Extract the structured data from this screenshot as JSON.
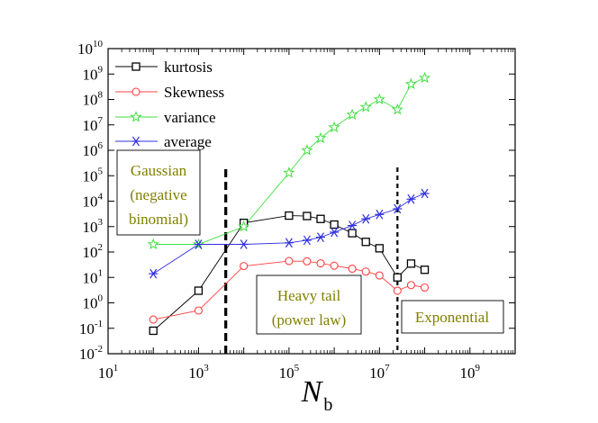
{
  "chart_data": {
    "type": "line",
    "xlabel": "N",
    "xlabel_sub": "b",
    "ylabel": "",
    "x_scale": "log",
    "y_scale": "log",
    "xlim": [
      10,
      10000000000.0
    ],
    "ylim": [
      0.01,
      10000000000.0
    ],
    "x_ticks": [
      {
        "value": 10,
        "base": "10",
        "exp": "1"
      },
      {
        "value": 1000,
        "base": "10",
        "exp": "3"
      },
      {
        "value": 100000,
        "base": "10",
        "exp": "5"
      },
      {
        "value": 10000000,
        "base": "10",
        "exp": "7"
      },
      {
        "value": 1000000000,
        "base": "10",
        "exp": "9"
      }
    ],
    "y_ticks": [
      {
        "value": 0.01,
        "base": "10",
        "exp": "-2"
      },
      {
        "value": 0.1,
        "base": "10",
        "exp": "-1"
      },
      {
        "value": 1,
        "base": "10",
        "exp": "0"
      },
      {
        "value": 10,
        "base": "10",
        "exp": "1"
      },
      {
        "value": 100,
        "base": "10",
        "exp": "2"
      },
      {
        "value": 1000,
        "base": "10",
        "exp": "3"
      },
      {
        "value": 10000,
        "base": "10",
        "exp": "4"
      },
      {
        "value": 100000,
        "base": "10",
        "exp": "5"
      },
      {
        "value": 1000000,
        "base": "10",
        "exp": "6"
      },
      {
        "value": 10000000,
        "base": "10",
        "exp": "7"
      },
      {
        "value": 100000000,
        "base": "10",
        "exp": "8"
      },
      {
        "value": 1000000000,
        "base": "10",
        "exp": "9"
      },
      {
        "value": 10000000000,
        "base": "10",
        "exp": "10"
      }
    ],
    "legend_position": "top-left",
    "grid": false,
    "series": [
      {
        "name": "kurtosis",
        "color": "#000000",
        "marker": "square",
        "x": [
          100,
          1000,
          10000,
          100000,
          250000,
          500000,
          1000000,
          2500000,
          5000000,
          10000000,
          25000000,
          50000000,
          100000000
        ],
        "y": [
          0.08,
          3,
          1400,
          2700,
          2600,
          2000,
          1200,
          550,
          250,
          140,
          10,
          35,
          20
        ]
      },
      {
        "name": "Skewness",
        "color": "#ff4040",
        "marker": "circle",
        "x": [
          100,
          1000,
          10000,
          100000,
          250000,
          500000,
          1000000,
          2500000,
          5000000,
          10000000,
          25000000,
          50000000,
          100000000
        ],
        "y": [
          0.22,
          0.5,
          28,
          44,
          43,
          36,
          29,
          22,
          17,
          12,
          3,
          5,
          4
        ]
      },
      {
        "name": "variance",
        "color": "#40e040",
        "marker": "star",
        "x": [
          100,
          1000,
          10000,
          100000,
          250000,
          500000,
          1000000,
          2500000,
          5000000,
          10000000,
          25000000,
          50000000,
          100000000
        ],
        "y": [
          200,
          200,
          1000,
          130000,
          1000000,
          3000000,
          8000000,
          25000000,
          50000000,
          100000000,
          40000000,
          400000000,
          700000000
        ]
      },
      {
        "name": "average",
        "color": "#3030e0",
        "marker": "asterisk",
        "x": [
          100,
          1000,
          10000,
          100000,
          250000,
          500000,
          1000000,
          2500000,
          5000000,
          10000000,
          25000000,
          50000000,
          100000000
        ],
        "y": [
          14,
          200,
          200,
          230,
          290,
          380,
          600,
          1100,
          2000,
          3000,
          5000,
          12000,
          20000
        ]
      }
    ],
    "vlines": [
      {
        "x": 4000,
        "style": "thick-dashed",
        "color": "#000000"
      },
      {
        "x": 25000000,
        "style": "dashed",
        "color": "#000000"
      }
    ],
    "annotations": [
      {
        "lines": [
          "Gaussian",
          "(negative",
          "binomial)"
        ],
        "color": "#808000"
      },
      {
        "lines": [
          "Heavy tail",
          "(power law)"
        ],
        "color": "#808000"
      },
      {
        "lines": [
          "Exponential"
        ],
        "color": "#808000"
      }
    ]
  }
}
